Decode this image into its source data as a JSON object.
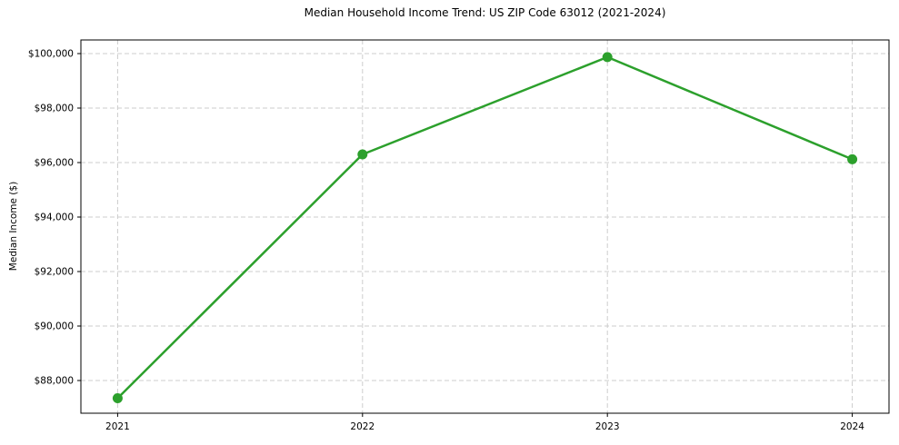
{
  "chart_data": {
    "type": "line",
    "title": "Median Household Income Trend: US ZIP Code 63012 (2021-2024)",
    "xlabel": "",
    "ylabel": "Median Income ($)",
    "x": [
      2021,
      2022,
      2023,
      2024
    ],
    "values": [
      87350,
      96300,
      99870,
      96120
    ],
    "xticks": [
      2021,
      2022,
      2023,
      2024
    ],
    "xtick_labels": [
      "2021",
      "2022",
      "2023",
      "2024"
    ],
    "yticks": [
      88000,
      90000,
      92000,
      94000,
      96000,
      98000,
      100000
    ],
    "ytick_labels": [
      "$88,000",
      "$90,000",
      "$92,000",
      "$94,000",
      "$96,000",
      "$98,000",
      "$100,000"
    ],
    "xlim": [
      2020.85,
      2024.15
    ],
    "ylim": [
      86800,
      100500
    ],
    "grid": true,
    "grid_style": "dashed",
    "legend": "none",
    "line_color": "#2ca02c",
    "marker": "circle",
    "colors": {
      "axis": "#000000",
      "text": "#000000",
      "grid": "#cccccc",
      "background": "#ffffff"
    }
  }
}
